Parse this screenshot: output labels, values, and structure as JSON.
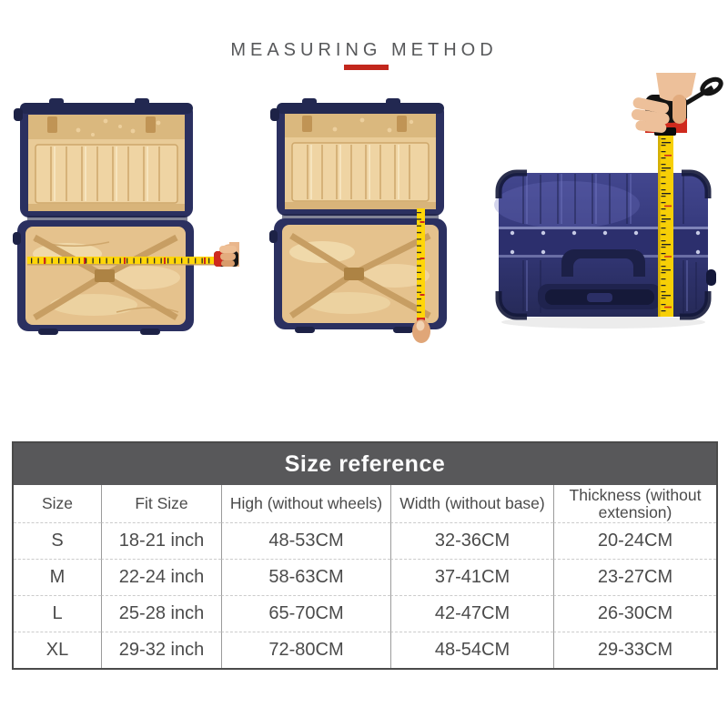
{
  "header": {
    "title": "MEASURING METHOD"
  },
  "figures": {
    "left_icon": "open-suitcase-measuring-width-photo",
    "middle_icon": "open-suitcase-measuring-height-photo",
    "right_icon": "closed-suitcase-measuring-thickness-photo"
  },
  "size_table": {
    "title": "Size reference",
    "columns": [
      "Size",
      "Fit Size",
      "High (without wheels)",
      "Width (without base)",
      "Thickness (without extension)"
    ],
    "rows": [
      [
        "S",
        "18-21 inch",
        "48-53CM",
        "32-36CM",
        "20-24CM"
      ],
      [
        "M",
        "22-24 inch",
        "58-63CM",
        "37-41CM",
        "23-27CM"
      ],
      [
        "L",
        "25-28 inch",
        "65-70CM",
        "42-47CM",
        "26-30CM"
      ],
      [
        "XL",
        "29-32 inch",
        "72-80CM",
        "48-54CM",
        "29-33CM"
      ]
    ]
  },
  "colors": {
    "accent_red": "#c2271c",
    "table_header_bg": "#58585a",
    "table_text": "#4b4b4b",
    "tape_yellow": "#ffd608",
    "suitcase_navy": "#2b3060",
    "lining_tan": "#e8c795"
  }
}
